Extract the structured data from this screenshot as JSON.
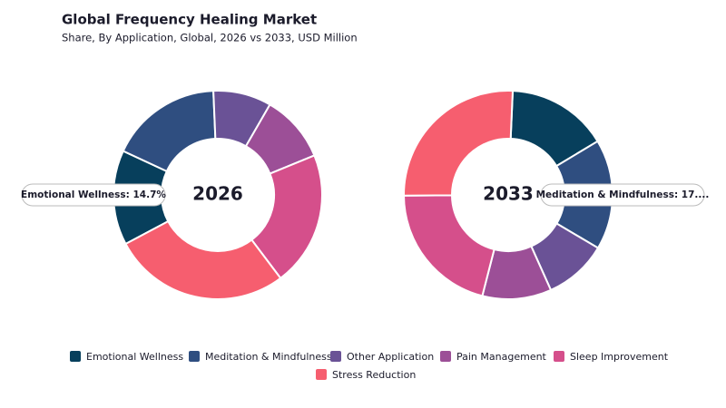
{
  "header": {
    "title": "Global Frequency Healing Market",
    "subtitle": "Share, By Application, Global, 2026 vs 2033, USD Million"
  },
  "chart_data": [
    {
      "type": "donut",
      "center_label": "2026",
      "categories": [
        "Emotional Wellness",
        "Meditation & Mindfulness",
        "Other Application",
        "Pain Management",
        "Sleep Improvement",
        "Stress Reduction"
      ],
      "values": [
        14.7,
        17.4,
        9.0,
        10.5,
        20.9,
        27.5
      ],
      "colors": [
        "#073f5c",
        "#2f4e80",
        "#6a5296",
        "#9c4f97",
        "#d54f8b",
        "#f65e6f"
      ],
      "annotation": "Emotional Wellness: 14.7%"
    },
    {
      "type": "donut",
      "center_label": "2033",
      "categories": [
        "Emotional Wellness",
        "Meditation & Mindfulness",
        "Other Application",
        "Pain Management",
        "Sleep Improvement",
        "Stress Reduction"
      ],
      "values": [
        15.7,
        17.1,
        9.8,
        10.7,
        20.9,
        25.8
      ],
      "colors": [
        "#073f5c",
        "#2f4e80",
        "#6a5296",
        "#9c4f97",
        "#d54f8b",
        "#f65e6f"
      ],
      "annotation": "Meditation & Mindfulness: 17...."
    }
  ]
}
